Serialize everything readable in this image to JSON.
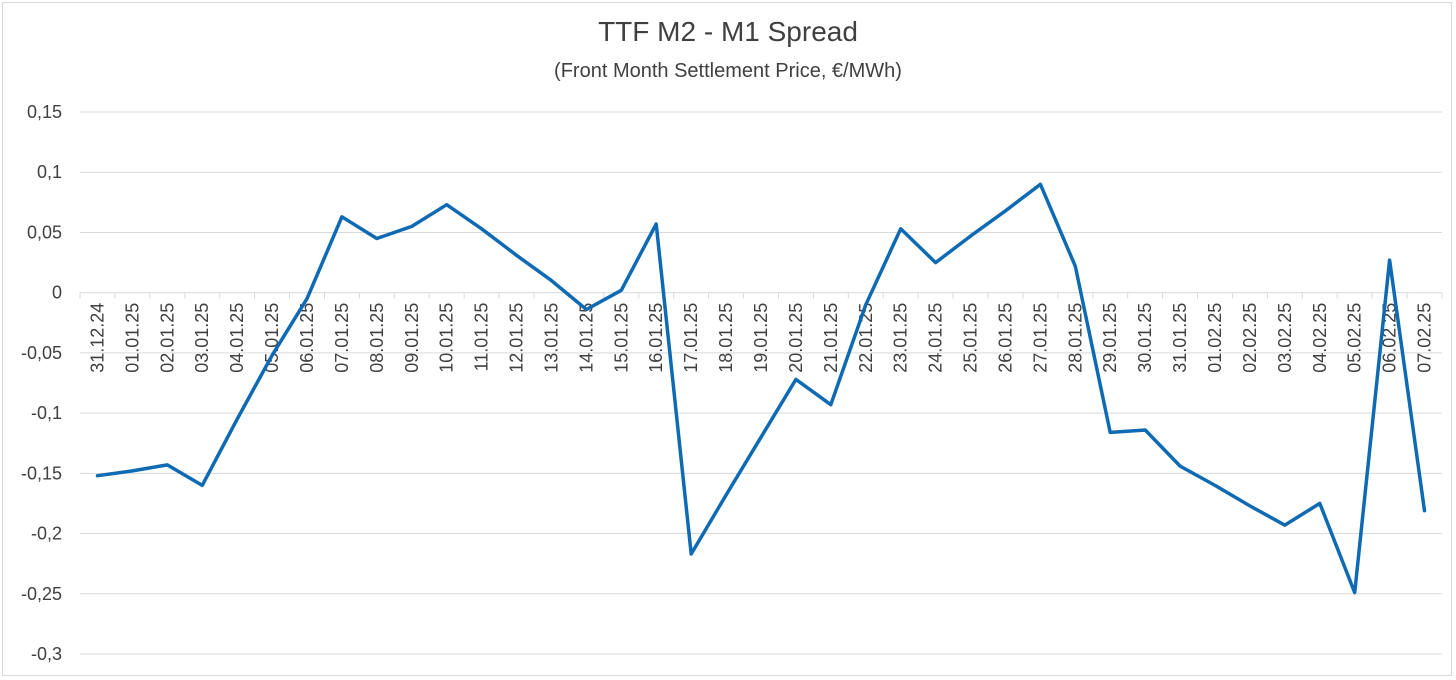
{
  "chart_data": {
    "type": "line",
    "title": "TTF M2 - M1 Spread",
    "subtitle": "(Front Month Settlement Price, €/MWh)",
    "xlabel": "",
    "ylabel": "",
    "ylim": [
      -0.3,
      0.15
    ],
    "yticks": [
      "0,15",
      "0,1",
      "0,05",
      "0",
      "-0,05",
      "-0,1",
      "-0,15",
      "-0,2",
      "-0,25",
      "-0,3"
    ],
    "ytick_values": [
      0.15,
      0.1,
      0.05,
      0,
      -0.05,
      -0.1,
      -0.15,
      -0.2,
      -0.25,
      -0.3
    ],
    "grid": true,
    "legend": "none",
    "line_color": "#0f6ab4",
    "categories": [
      "31.12.24",
      "01.01.25",
      "02.01.25",
      "03.01.25",
      "04.01.25",
      "05.01.25",
      "06.01.25",
      "07.01.25",
      "08.01.25",
      "09.01.25",
      "10.01.25",
      "11.01.25",
      "12.01.25",
      "13.01.25",
      "14.01.25",
      "15.01.25",
      "16.01.25",
      "17.01.25",
      "18.01.25",
      "19.01.25",
      "20.01.25",
      "21.01.25",
      "22.01.25",
      "23.01.25",
      "24.01.25",
      "25.01.25",
      "26.01.25",
      "27.01.25",
      "28.01.25",
      "29.01.25",
      "30.01.25",
      "31.01.25",
      "01.02.25",
      "02.02.25",
      "03.02.25",
      "04.02.25",
      "05.02.25",
      "06.02.25",
      "07.02.25"
    ],
    "series": [
      {
        "values": [
          -0.152,
          -0.148,
          -0.143,
          -0.16,
          -0.105,
          -0.052,
          -0.005,
          0.063,
          0.045,
          0.055,
          0.073,
          0.053,
          0.031,
          0.01,
          -0.014,
          0.002,
          0.057,
          -0.217,
          -0.168,
          -0.12,
          -0.072,
          -0.093,
          -0.01,
          0.053,
          0.025,
          0.047,
          0.068,
          0.09,
          0.022,
          -0.116,
          -0.114,
          -0.144,
          -0.16,
          -0.177,
          -0.193,
          -0.175,
          -0.249,
          0.027,
          -0.181
        ]
      }
    ]
  }
}
